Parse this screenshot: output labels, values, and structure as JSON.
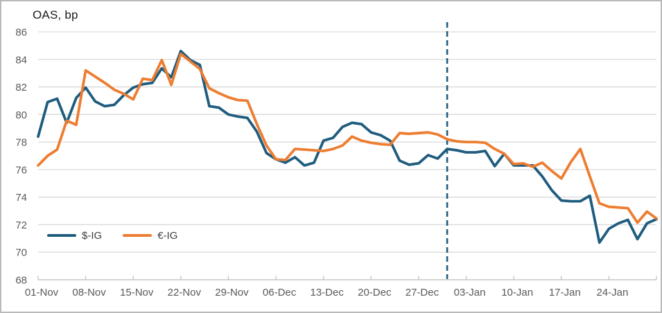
{
  "chart_data": {
    "type": "line",
    "title": "OAS, bp",
    "ylabel": "OAS, bp",
    "ylim": [
      68,
      86
    ],
    "ytick_step": 2,
    "grid": "horizontal",
    "legend_position": "bottom-left",
    "x": [
      "01-Nov",
      "04-Nov",
      "05-Nov",
      "06-Nov",
      "07-Nov",
      "08-Nov",
      "11-Nov",
      "12-Nov",
      "13-Nov",
      "14-Nov",
      "15-Nov",
      "18-Nov",
      "19-Nov",
      "20-Nov",
      "21-Nov",
      "22-Nov",
      "25-Nov",
      "26-Nov",
      "27-Nov",
      "28-Nov",
      "29-Nov",
      "02-Dec",
      "03-Dec",
      "04-Dec",
      "05-Dec",
      "06-Dec",
      "09-Dec",
      "10-Dec",
      "11-Dec",
      "12-Dec",
      "13-Dec",
      "16-Dec",
      "17-Dec",
      "18-Dec",
      "19-Dec",
      "20-Dec",
      "23-Dec",
      "24-Dec",
      "25-Dec",
      "26-Dec",
      "27-Dec",
      "30-Dec",
      "31-Dec",
      "01-Jan",
      "02-Jan",
      "03-Jan",
      "06-Jan",
      "07-Jan",
      "08-Jan",
      "09-Jan",
      "10-Jan",
      "13-Jan",
      "14-Jan",
      "15-Jan",
      "16-Jan",
      "17-Jan",
      "20-Jan",
      "21-Jan",
      "22-Jan",
      "23-Jan",
      "24-Jan",
      "27-Jan",
      "28-Jan",
      "29-Jan",
      "30-Jan",
      "31-Jan"
    ],
    "xtick_labels": [
      "01-Nov",
      "08-Nov",
      "15-Nov",
      "22-Nov",
      "29-Nov",
      "06-Dec",
      "13-Dec",
      "20-Dec",
      "27-Dec",
      "03-Jan",
      "10-Jan",
      "17-Jan",
      "24-Jan"
    ],
    "xtick_every": 5,
    "series": [
      {
        "name": "$-IG",
        "color": "#1F5C7E",
        "values": [
          78.4,
          80.9,
          81.15,
          79.4,
          81.2,
          81.95,
          80.95,
          80.6,
          80.7,
          81.4,
          81.95,
          82.2,
          82.3,
          83.35,
          82.7,
          84.6,
          83.95,
          83.6,
          80.6,
          80.5,
          80.0,
          79.85,
          79.75,
          78.75,
          77.2,
          76.75,
          76.5,
          76.9,
          76.3,
          76.5,
          78.1,
          78.3,
          79.1,
          79.4,
          79.3,
          78.7,
          78.5,
          78.1,
          76.65,
          76.35,
          76.45,
          77.05,
          76.8,
          77.5,
          77.4,
          77.25,
          77.25,
          77.35,
          76.25,
          77.15,
          76.3,
          76.3,
          76.3,
          75.5,
          74.5,
          73.75,
          73.7,
          73.7,
          74.1,
          70.7,
          71.7,
          72.1,
          72.35,
          70.95,
          72.1,
          72.4
        ]
      },
      {
        "name": "€-IG",
        "color": "#ED7D31",
        "values": [
          76.3,
          77.0,
          77.45,
          79.55,
          79.25,
          83.2,
          82.75,
          82.3,
          81.8,
          81.5,
          81.1,
          82.6,
          82.5,
          83.95,
          82.15,
          84.4,
          83.85,
          83.3,
          81.9,
          81.55,
          81.25,
          81.05,
          81.0,
          79.3,
          77.75,
          76.75,
          76.7,
          77.5,
          77.45,
          77.4,
          77.35,
          77.5,
          77.75,
          78.4,
          78.1,
          77.95,
          77.85,
          77.8,
          78.65,
          78.6,
          78.65,
          78.7,
          78.55,
          78.2,
          78.05,
          78.0,
          78.0,
          77.95,
          77.5,
          77.15,
          76.4,
          76.45,
          76.2,
          76.5,
          75.9,
          75.35,
          76.55,
          77.5,
          75.5,
          73.55,
          73.3,
          73.25,
          73.2,
          72.15,
          72.95,
          72.45
        ]
      }
    ],
    "annotation": {
      "type": "vertical-dashed-line",
      "x": "01-Jan",
      "x_index": 43,
      "color": "#1F5C7E"
    },
    "style": {
      "gridline_color": "#D9D9D9",
      "axis_color": "#BFBFBF",
      "tick_label_color": "#595959",
      "title_color": "#1a1a1a",
      "legend_text_color": "#404040",
      "background": "#ffffff"
    }
  }
}
